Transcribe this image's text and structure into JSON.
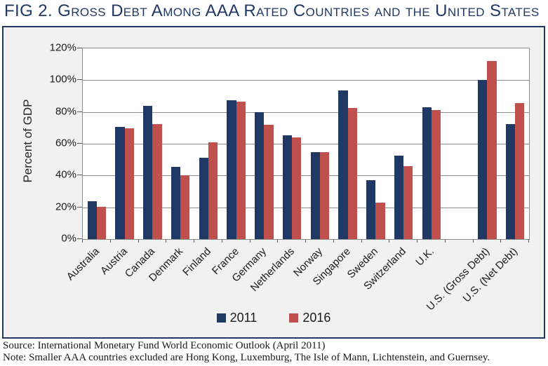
{
  "title": {
    "prefix": "FIG 2. ",
    "text": "Gross Debt Among AAA Rated Countries and the United States"
  },
  "chart_data": {
    "type": "bar",
    "title": "FIG 2. Gross Debt Among AAA Rated Countries and the United States",
    "ylabel": "Percent of GDP",
    "ylim": [
      0,
      120
    ],
    "yticks": [
      0,
      20,
      40,
      60,
      80,
      100,
      120
    ],
    "ytick_suffix": "%",
    "grid": true,
    "legend_position": "bottom",
    "categories": [
      "Australia",
      "Austria",
      "Canada",
      "Denmark",
      "Finland",
      "France",
      "Germany",
      "Netherlands",
      "Norway",
      "Singapore",
      "Sweden",
      "Switzerland",
      "U.K.",
      "",
      "U.S. (Gross Debt)",
      "U.S. (Net Debt)"
    ],
    "series": [
      {
        "name": "2011",
        "color": "#1F3864",
        "values": [
          24,
          70.5,
          84,
          45.5,
          51,
          87.5,
          80,
          65.5,
          54.5,
          93.5,
          37,
          52.5,
          83,
          null,
          100,
          72.5
        ]
      },
      {
        "name": "2016",
        "color": "#C0504D",
        "values": [
          20.5,
          69.5,
          72.5,
          40,
          61,
          86.5,
          72,
          64,
          54.5,
          82.5,
          23,
          46,
          81,
          null,
          112,
          85.5
        ]
      }
    ]
  },
  "footer": {
    "source": "Source: International Monetary Fund World Economic Outlook (April 2011)",
    "note": "Note: Smaller AAA countries excluded are Hong Kong, Luxemburg, The Isle of Mann, Lichtenstein, and Guernsey."
  },
  "colors": {
    "title": "#1F3864",
    "frame_border": "#1F3864",
    "frame_bg": "#F1F1F1",
    "plot_bg": "#FFFFFF",
    "gridline": "#8E8E8E",
    "series_2011": "#1F3864",
    "series_2016": "#C0504D"
  }
}
